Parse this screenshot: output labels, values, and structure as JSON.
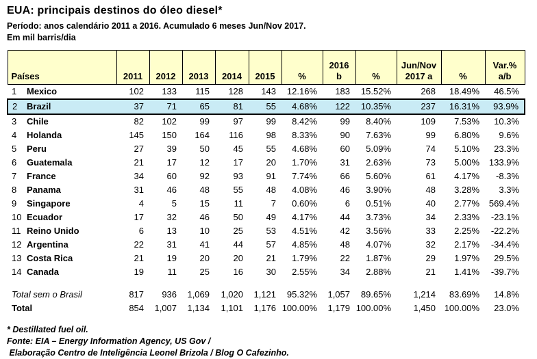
{
  "title": "EUA: principais destinos do óleo diesel*",
  "subtitle": "Período: anos calendário 2011 a 2016. Acumulado 6 meses Jun/Nov 2017.",
  "unit": "Em mil barris/dia",
  "colors": {
    "header_bg": "#FFFFCC",
    "highlight_bg": "#C9EBF5",
    "border": "#000000"
  },
  "table": {
    "headers": [
      "Países",
      "2011",
      "2012",
      "2013",
      "2014",
      "2015",
      "%",
      "2016\nb",
      "%",
      "Jun/Nov\n2017 a",
      "%",
      "Var.%\na/b"
    ],
    "rows": [
      {
        "rank": "1",
        "country": "Mexico",
        "highlight": false,
        "values": [
          "102",
          "133",
          "115",
          "128",
          "143",
          "12.16%",
          "183",
          "15.52%",
          "268",
          "18.49%",
          "46.5%"
        ]
      },
      {
        "rank": "2",
        "country": "Brazil",
        "highlight": true,
        "values": [
          "37",
          "71",
          "65",
          "81",
          "55",
          "4.68%",
          "122",
          "10.35%",
          "237",
          "16.31%",
          "93.9%"
        ]
      },
      {
        "rank": "3",
        "country": "Chile",
        "highlight": false,
        "values": [
          "82",
          "102",
          "99",
          "97",
          "99",
          "8.42%",
          "99",
          "8.40%",
          "109",
          "7.53%",
          "10.3%"
        ]
      },
      {
        "rank": "4",
        "country": "Holanda",
        "highlight": false,
        "values": [
          "145",
          "150",
          "164",
          "116",
          "98",
          "8.33%",
          "90",
          "7.63%",
          "99",
          "6.80%",
          "9.6%"
        ]
      },
      {
        "rank": "5",
        "country": "Peru",
        "highlight": false,
        "values": [
          "27",
          "39",
          "50",
          "45",
          "55",
          "4.68%",
          "60",
          "5.09%",
          "74",
          "5.10%",
          "23.3%"
        ]
      },
      {
        "rank": "6",
        "country": "Guatemala",
        "highlight": false,
        "values": [
          "21",
          "17",
          "12",
          "17",
          "20",
          "1.70%",
          "31",
          "2.63%",
          "73",
          "5.00%",
          "133.9%"
        ]
      },
      {
        "rank": "7",
        "country": "France",
        "highlight": false,
        "values": [
          "34",
          "60",
          "92",
          "93",
          "91",
          "7.74%",
          "66",
          "5.60%",
          "61",
          "4.17%",
          "-8.3%"
        ]
      },
      {
        "rank": "8",
        "country": "Panama",
        "highlight": false,
        "values": [
          "31",
          "46",
          "48",
          "55",
          "48",
          "4.08%",
          "46",
          "3.90%",
          "48",
          "3.28%",
          "3.3%"
        ]
      },
      {
        "rank": "9",
        "country": "Singapore",
        "highlight": false,
        "values": [
          "4",
          "5",
          "15",
          "11",
          "7",
          "0.60%",
          "6",
          "0.51%",
          "40",
          "2.77%",
          "569.4%"
        ]
      },
      {
        "rank": "10",
        "country": "Ecuador",
        "highlight": false,
        "values": [
          "17",
          "32",
          "46",
          "50",
          "49",
          "4.17%",
          "44",
          "3.73%",
          "34",
          "2.33%",
          "-23.1%"
        ]
      },
      {
        "rank": "11",
        "country": "Reino Unido",
        "highlight": false,
        "values": [
          "6",
          "13",
          "10",
          "25",
          "53",
          "4.51%",
          "42",
          "3.56%",
          "33",
          "2.25%",
          "-22.2%"
        ]
      },
      {
        "rank": "12",
        "country": "Argentina",
        "highlight": false,
        "values": [
          "22",
          "31",
          "41",
          "44",
          "57",
          "4.85%",
          "48",
          "4.07%",
          "32",
          "2.17%",
          "-34.4%"
        ]
      },
      {
        "rank": "13",
        "country": "Costa Rica",
        "highlight": false,
        "values": [
          "21",
          "19",
          "20",
          "20",
          "21",
          "1.79%",
          "22",
          "1.87%",
          "29",
          "1.97%",
          "29.5%"
        ]
      },
      {
        "rank": "14",
        "country": "Canada",
        "highlight": false,
        "values": [
          "19",
          "11",
          "25",
          "16",
          "30",
          "2.55%",
          "34",
          "2.88%",
          "21",
          "1.41%",
          "-39.7%"
        ]
      }
    ],
    "totals": [
      {
        "label": "Total sem o Brasil",
        "style": "italic",
        "values": [
          "817",
          "936",
          "1,069",
          "1,020",
          "1,121",
          "95.32%",
          "1,057",
          "89.65%",
          "1,214",
          "83.69%",
          "14.8%"
        ]
      },
      {
        "label": "Total",
        "style": "bold",
        "values": [
          "854",
          "1,007",
          "1,134",
          "1,101",
          "1,176",
          "100.00%",
          "1,179",
          "100.00%",
          "1,450",
          "100.00%",
          "23.0%"
        ]
      }
    ]
  },
  "footnotes": [
    "* Destillated fuel oil.",
    "Fonte: EIA – Energy Information Agency, US Gov /",
    " Elaboração Centro de Inteligência Leonel Brizola / Blog O Cafezinho."
  ]
}
